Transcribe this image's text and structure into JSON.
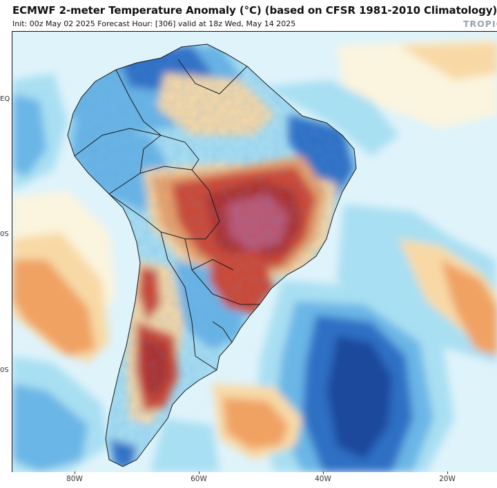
{
  "header": {
    "title": "ECMWF 2-meter Temperature Anomaly (°C) (based on CFSR 1981-2010 Climatology)",
    "subtitle": "Init: 00z May 02 2025   Forecast Hour: [306]   valid at 18z Wed, May 14 2025",
    "brand": "TROPIC"
  },
  "map": {
    "lat_labels": [
      "EQ",
      "0S",
      "0S"
    ],
    "lon_labels": [
      "80W",
      "60W",
      "40W",
      "20W"
    ],
    "colors": {
      "ocean_background": "#dff3fb",
      "light_blue": "#a9dff2",
      "mid_blue": "#6ab6e6",
      "deep_blue": "#2f6fc4",
      "navy": "#1d4a9c",
      "cream": "#fbf4de",
      "light_orange": "#f8d9a6",
      "orange": "#f0a264",
      "red": "#d2452e",
      "dark_red": "#b02d2b",
      "magenta": "#c0556e",
      "border": "#1a1a1a"
    }
  }
}
